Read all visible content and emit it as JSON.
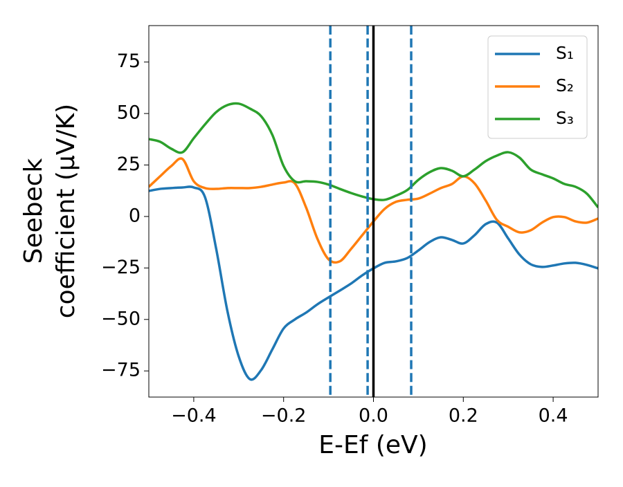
{
  "chart_data": {
    "type": "line",
    "xlabel": "E-Ef (eV)",
    "ylabel": [
      "Seebeck",
      "coefficient  (μV/K)"
    ],
    "x": [
      -0.5,
      -0.475,
      -0.45,
      -0.425,
      -0.4,
      -0.375,
      -0.35,
      -0.325,
      -0.3,
      -0.275,
      -0.25,
      -0.225,
      -0.2,
      -0.175,
      -0.15,
      -0.125,
      -0.1,
      -0.075,
      -0.05,
      -0.025,
      0,
      0.025,
      0.05,
      0.075,
      0.1,
      0.125,
      0.15,
      0.175,
      0.2,
      0.225,
      0.25,
      0.275,
      0.3,
      0.325,
      0.35,
      0.375,
      0.4,
      0.425,
      0.45,
      0.475,
      0.5
    ],
    "series": [
      {
        "name": "S₁",
        "color": "#1f77b4",
        "values": [
          12.4,
          13.4,
          13.8,
          14.1,
          14.1,
          9.4,
          -15.8,
          -46,
          -67.9,
          -79,
          -74.6,
          -64.5,
          -54.4,
          -50,
          -46.7,
          -42.7,
          -39.3,
          -36,
          -32.6,
          -28.6,
          -25.2,
          -22.5,
          -21.8,
          -20.2,
          -16.5,
          -12.4,
          -10.1,
          -11.4,
          -13.1,
          -9.1,
          -3.7,
          -3,
          -10.7,
          -18.5,
          -23.2,
          -24.5,
          -23.8,
          -22.8,
          -22.5,
          -23.5,
          -25.2
        ]
      },
      {
        "name": "S₂",
        "color": "#ff7f0e",
        "values": [
          14.4,
          19.5,
          24.5,
          27.9,
          17.1,
          13.8,
          13.4,
          13.8,
          13.8,
          13.8,
          14.4,
          15.5,
          16.5,
          16.1,
          4.4,
          -10.7,
          -20.8,
          -21.8,
          -15.8,
          -9.1,
          -2.4,
          3.7,
          7.1,
          8.1,
          8.7,
          11.1,
          13.8,
          15.8,
          19.5,
          16.1,
          7.7,
          -1.7,
          -5,
          -7.7,
          -6.7,
          -3,
          -0.3,
          -0.3,
          -2.4,
          -3,
          -1
        ]
      },
      {
        "name": "S₃",
        "color": "#2ca02c",
        "values": [
          37.6,
          36.3,
          32.9,
          31.2,
          38,
          44.7,
          50.7,
          54.1,
          54.8,
          52.4,
          48.7,
          39.6,
          24.5,
          17.1,
          17.1,
          16.8,
          15.5,
          13.4,
          11.4,
          9.7,
          8.4,
          8.1,
          10.1,
          12.8,
          17.8,
          21.5,
          23.5,
          22.2,
          19.5,
          22.8,
          26.9,
          29.6,
          31.2,
          28.6,
          22.8,
          20.5,
          18.5,
          15.8,
          14.4,
          11.1,
          4.4
        ]
      }
    ],
    "vlines": [
      {
        "x": -0.096,
        "color": "#1f77b4",
        "style": "dashed"
      },
      {
        "x": -0.013,
        "color": "#1f77b4",
        "style": "dashed"
      },
      {
        "x": 0.084,
        "color": "#1f77b4",
        "style": "dashed"
      },
      {
        "x": 0,
        "color": "#000000",
        "style": "solid"
      }
    ],
    "xlim": [
      -0.5,
      0.5
    ],
    "ylim": [
      -87.7,
      92.7
    ],
    "xticks": [
      {
        "value": -0.4,
        "label": "−0.4"
      },
      {
        "value": -0.2,
        "label": "−0.2"
      },
      {
        "value": 0,
        "label": "0.0"
      },
      {
        "value": 0.2,
        "label": "0.2"
      },
      {
        "value": 0.4,
        "label": "0.4"
      }
    ],
    "yticks": [
      {
        "value": -75,
        "label": "−75"
      },
      {
        "value": -50,
        "label": "−50"
      },
      {
        "value": -25,
        "label": "−25"
      },
      0,
      25,
      50,
      75
    ],
    "legend": "upper right",
    "grid": false
  }
}
